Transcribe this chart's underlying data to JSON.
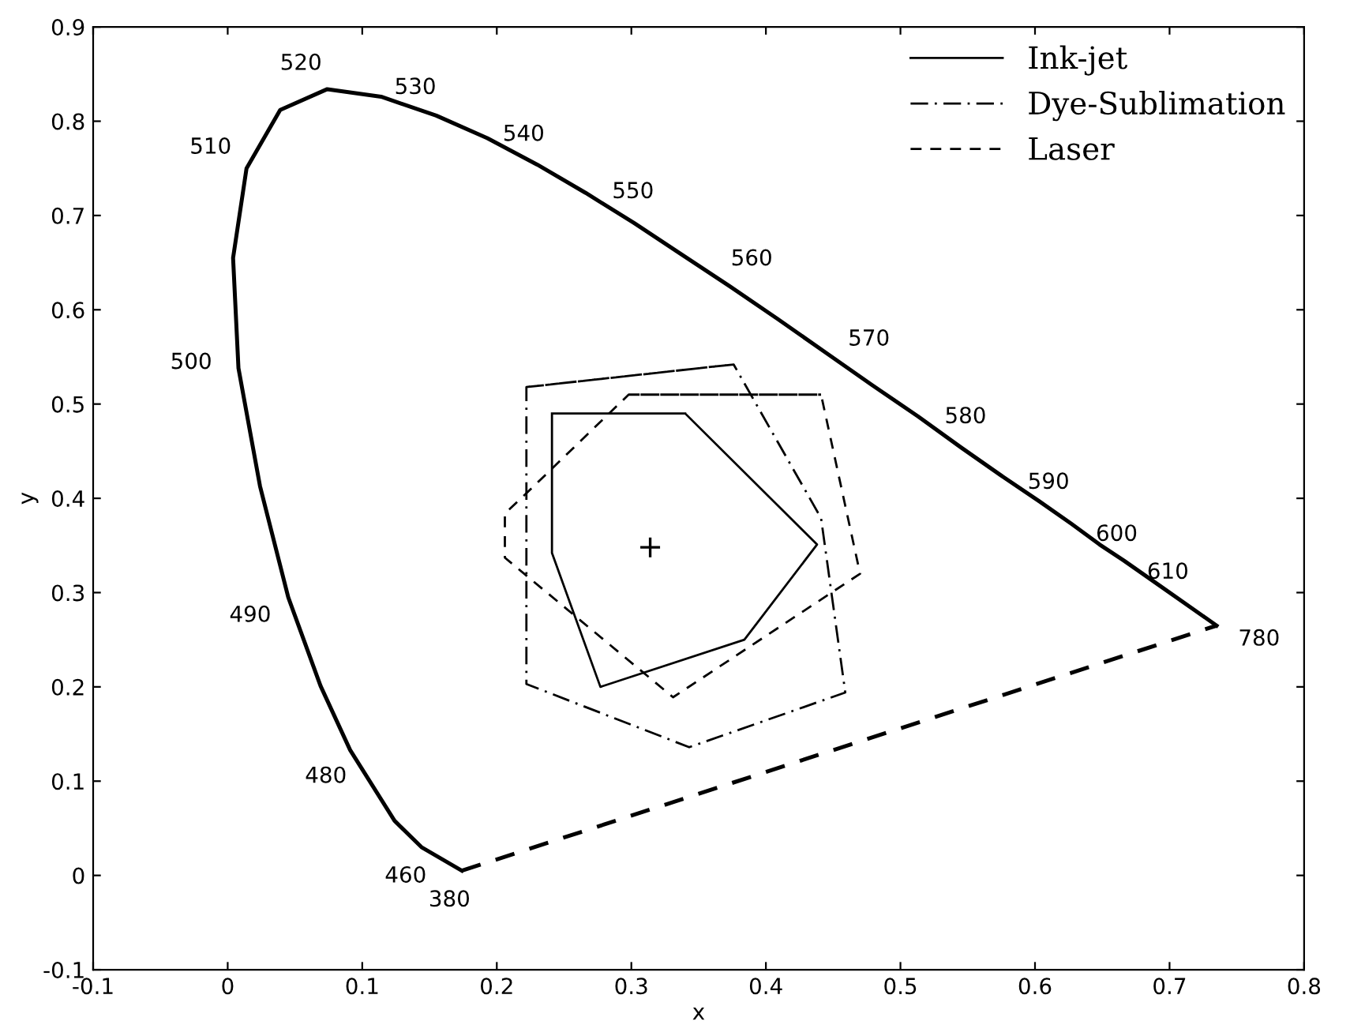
{
  "chart_data": {
    "type": "line",
    "xlabel": "x",
    "ylabel": "y",
    "xlim": [
      -0.1,
      0.8
    ],
    "ylim": [
      -0.1,
      0.9
    ],
    "xticks": [
      -0.1,
      0,
      0.1,
      0.2,
      0.3,
      0.4,
      0.5,
      0.6,
      0.7,
      0.8
    ],
    "yticks": [
      -0.1,
      0,
      0.1,
      0.2,
      0.3,
      0.4,
      0.5,
      0.6,
      0.7,
      0.8,
      0.9
    ],
    "grid": false,
    "legend": "top right",
    "series": [
      {
        "color": "#000000",
        "line_style": "solid",
        "x": [
          0.174,
          0.144,
          0.124,
          0.091,
          0.069,
          0.045,
          0.024,
          0.008,
          0.004,
          0.014,
          0.039,
          0.074,
          0.114,
          0.155,
          0.193,
          0.23,
          0.266,
          0.302,
          0.337,
          0.373,
          0.409,
          0.444,
          0.479,
          0.513,
          0.545,
          0.575,
          0.603,
          0.627,
          0.648,
          0.666,
          0.692,
          0.735
        ],
        "values": [
          0.005,
          0.03,
          0.058,
          0.133,
          0.201,
          0.295,
          0.413,
          0.538,
          0.655,
          0.75,
          0.812,
          0.834,
          0.826,
          0.806,
          0.782,
          0.754,
          0.724,
          0.692,
          0.659,
          0.625,
          0.59,
          0.555,
          0.52,
          0.487,
          0.454,
          0.424,
          0.397,
          0.373,
          0.351,
          0.334,
          0.308,
          0.265
        ]
      },
      {
        "name": "Ink-jet",
        "color": "#000000",
        "line_style": "solid",
        "x": [
          0.241,
          0.34,
          0.438,
          0.384,
          0.277,
          0.241,
          0.241
        ],
        "values": [
          0.49,
          0.49,
          0.351,
          0.25,
          0.2,
          0.342,
          0.49
        ]
      },
      {
        "name": "Dye-Sublimation",
        "color": "#000000",
        "line_style": "dashdot",
        "x": [
          0.222,
          0.376,
          0.441,
          0.459,
          0.343,
          0.222,
          0.222
        ],
        "values": [
          0.518,
          0.542,
          0.379,
          0.194,
          0.136,
          0.203,
          0.518
        ]
      },
      {
        "name": "Laser",
        "color": "#000000",
        "line_style": "dashed",
        "x": [
          0.298,
          0.441,
          0.47,
          0.331,
          0.206,
          0.206,
          0.221,
          0.298
        ],
        "values": [
          0.51,
          0.51,
          0.32,
          0.189,
          0.337,
          0.384,
          0.404,
          0.51
        ]
      },
      {
        "type": "scatter",
        "color": "#000000",
        "marker": "cross",
        "x": [
          0.314
        ],
        "values": [
          0.348
        ]
      },
      {
        "color": "#000000",
        "line_style": "dashed",
        "x": [
          0.174,
          0.735
        ],
        "values": [
          0.005,
          0.265
        ]
      }
    ],
    "annotations": [
      {
        "text": "380",
        "x": 0.1741,
        "y": 0.005
      },
      {
        "text": "460",
        "x": 0.144,
        "y": 0.0297
      },
      {
        "text": "480",
        "x": 0.0913,
        "y": 0.1327
      },
      {
        "text": "490",
        "x": 0.0454,
        "y": 0.295
      },
      {
        "text": "500",
        "x": 0.0082,
        "y": 0.5384
      },
      {
        "text": "510",
        "x": 0.0139,
        "y": 0.7502
      },
      {
        "text": "520",
        "x": 0.0743,
        "y": 0.8338
      },
      {
        "text": "530",
        "x": 0.1547,
        "y": 0.8059
      },
      {
        "text": "540",
        "x": 0.2296,
        "y": 0.7543
      },
      {
        "text": "550",
        "x": 0.3016,
        "y": 0.6923
      },
      {
        "text": "560",
        "x": 0.3731,
        "y": 0.6245
      },
      {
        "text": "570",
        "x": 0.4441,
        "y": 0.5547
      },
      {
        "text": "580",
        "x": 0.5125,
        "y": 0.4866
      },
      {
        "text": "590",
        "x": 0.5752,
        "y": 0.4242
      },
      {
        "text": "600",
        "x": 0.627,
        "y": 0.3725
      },
      {
        "text": "610",
        "x": 0.6658,
        "y": 0.334
      },
      {
        "text": "780",
        "x": 0.7347,
        "y": 0.2653
      }
    ]
  }
}
